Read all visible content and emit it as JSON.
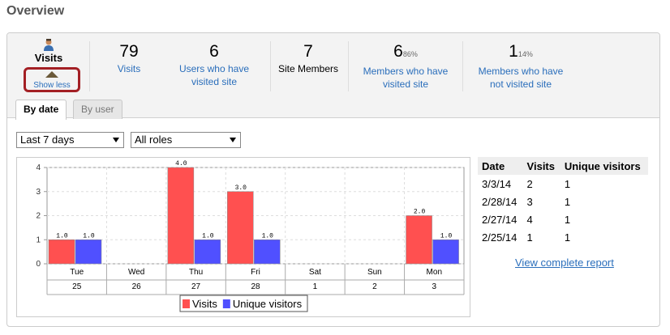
{
  "page_title": "Overview",
  "header": {
    "visits_label": "Visits",
    "show_less": "Show less"
  },
  "stats": [
    {
      "value": "79",
      "percent": "",
      "caption1": "Visits",
      "caption2": "",
      "link": true
    },
    {
      "value": "6",
      "percent": "",
      "caption1": "Users who have",
      "caption2": "visited site",
      "link": true
    },
    {
      "value": "7",
      "percent": "",
      "caption1": "Site Members",
      "caption2": "",
      "link": false
    },
    {
      "value": "6",
      "percent": "86%",
      "caption1": "Members who have",
      "caption2": "visited site",
      "link": true
    },
    {
      "value": "1",
      "percent": "14%",
      "caption1": "Members who have",
      "caption2": "not visited site",
      "link": true
    }
  ],
  "tabs": {
    "by_date": "By date",
    "by_user": "By user"
  },
  "filters": {
    "period": "Last 7 days",
    "roles": "All roles"
  },
  "chart_data": {
    "type": "bar",
    "categories": [
      "Tue",
      "Wed",
      "Thu",
      "Fri",
      "Sat",
      "Sun",
      "Mon"
    ],
    "dates": [
      "25",
      "26",
      "27",
      "28",
      "1",
      "2",
      "3"
    ],
    "series": [
      {
        "name": "Visits",
        "color": "#ff5050",
        "values": [
          1,
          0,
          4,
          3,
          0,
          0,
          2
        ]
      },
      {
        "name": "Unique visitors",
        "color": "#5050ff",
        "values": [
          1,
          0,
          1,
          1,
          0,
          0,
          1
        ]
      }
    ],
    "ylim": [
      0,
      4
    ],
    "yticks": [
      "0",
      "1",
      "2",
      "3",
      "4"
    ],
    "grid": true,
    "legend": "bottom"
  },
  "summary_table": {
    "headers": [
      "Date",
      "Visits",
      "Unique visitors"
    ],
    "rows": [
      [
        "3/3/14",
        "2",
        "1"
      ],
      [
        "2/28/14",
        "3",
        "1"
      ],
      [
        "2/27/14",
        "4",
        "1"
      ],
      [
        "2/25/14",
        "1",
        "1"
      ]
    ]
  },
  "report_link": "View complete report"
}
